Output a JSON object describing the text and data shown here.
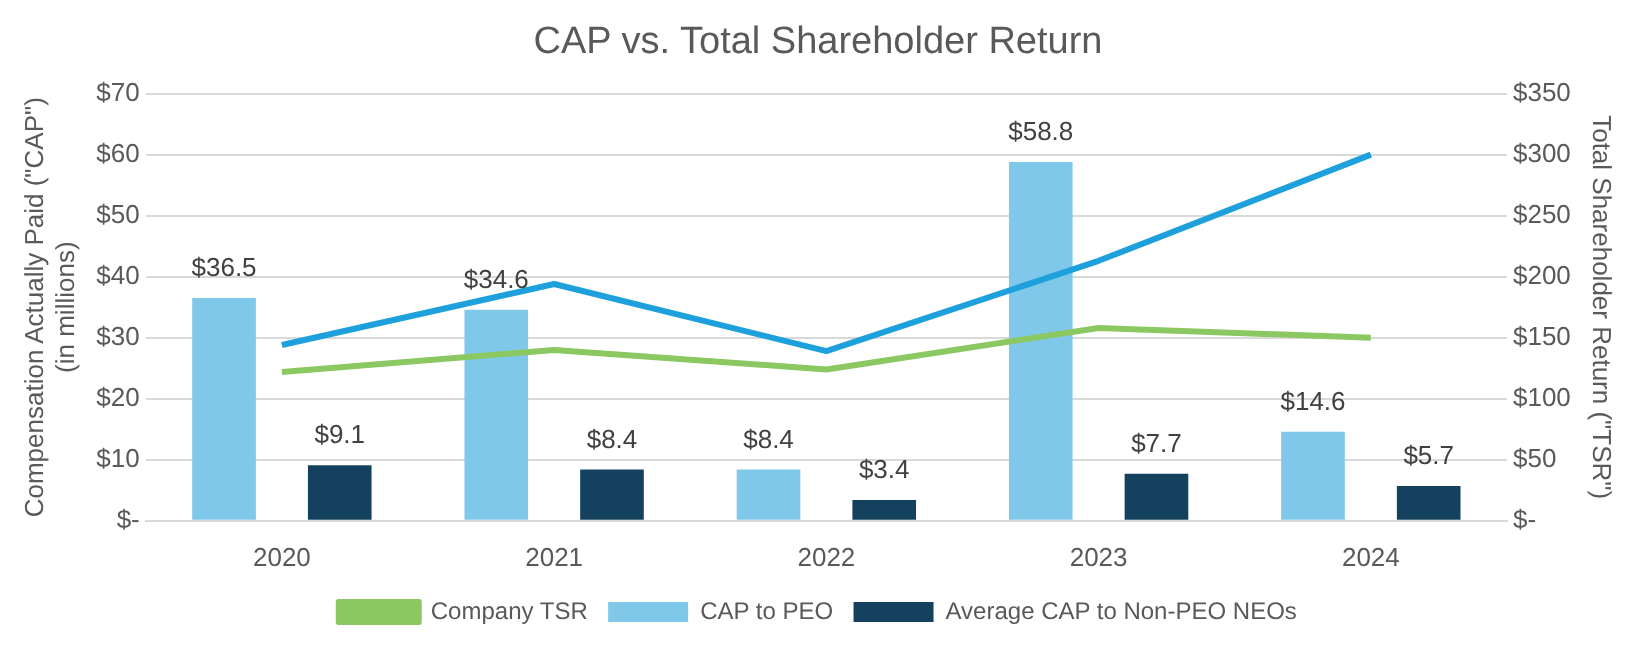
{
  "chart_data": {
    "type": "bar",
    "title": "CAP vs. Total Shareholder Return",
    "ylabel": "Compensation Actually Paid (\"CAP\")\n(in millions)",
    "y2label": "Total Shareholder Return (\"TSR\")",
    "categories": [
      "2020",
      "2021",
      "2022",
      "2023",
      "2024"
    ],
    "series": [
      {
        "name": "CAP to PEO",
        "color": "#7fc8ea",
        "values": [
          36.5,
          34.6,
          8.4,
          58.8,
          14.6
        ],
        "value_labels": [
          "$36.5",
          "$34.6",
          "$8.4",
          "$58.8",
          "$14.6"
        ]
      },
      {
        "name": "Average CAP to Non-PEO NEOs",
        "color": "#14425e",
        "values": [
          9.1,
          8.4,
          3.4,
          7.7,
          5.7
        ],
        "value_labels": [
          "$9.1",
          "$8.4",
          "$3.4",
          "$7.7",
          "$5.7"
        ]
      },
      {
        "name": "Company TSR",
        "type": "line",
        "axis": "y2",
        "color": "#8cc862",
        "values": [
          122,
          140,
          124,
          158,
          150
        ]
      },
      {
        "type": "line",
        "axis": "y2",
        "color": "#1ea0dc",
        "values": [
          144,
          194,
          139,
          213,
          300
        ]
      }
    ],
    "ylim": [
      0,
      70
    ],
    "yticks": [
      {
        "value": 0,
        "label": "$-"
      },
      {
        "value": 10,
        "label": "$10"
      },
      {
        "value": 20,
        "label": "$20"
      },
      {
        "value": 30,
        "label": "$30"
      },
      {
        "value": 40,
        "label": "$40"
      },
      {
        "value": 50,
        "label": "$50"
      },
      {
        "value": 60,
        "label": "$60"
      },
      {
        "value": 70,
        "label": "$70"
      }
    ],
    "y2lim": [
      0,
      350
    ],
    "y2ticks": [
      {
        "value": 0,
        "label": "$-"
      },
      {
        "value": 50,
        "label": "$50"
      },
      {
        "value": 100,
        "label": "$100"
      },
      {
        "value": 150,
        "label": "$150"
      },
      {
        "value": 200,
        "label": "$200"
      },
      {
        "value": 250,
        "label": "$250"
      },
      {
        "value": 300,
        "label": "$300"
      },
      {
        "value": 350,
        "label": "$350"
      }
    ],
    "grid": "y",
    "legend": "bottom",
    "marker": "none",
    "line_style": "solid"
  }
}
